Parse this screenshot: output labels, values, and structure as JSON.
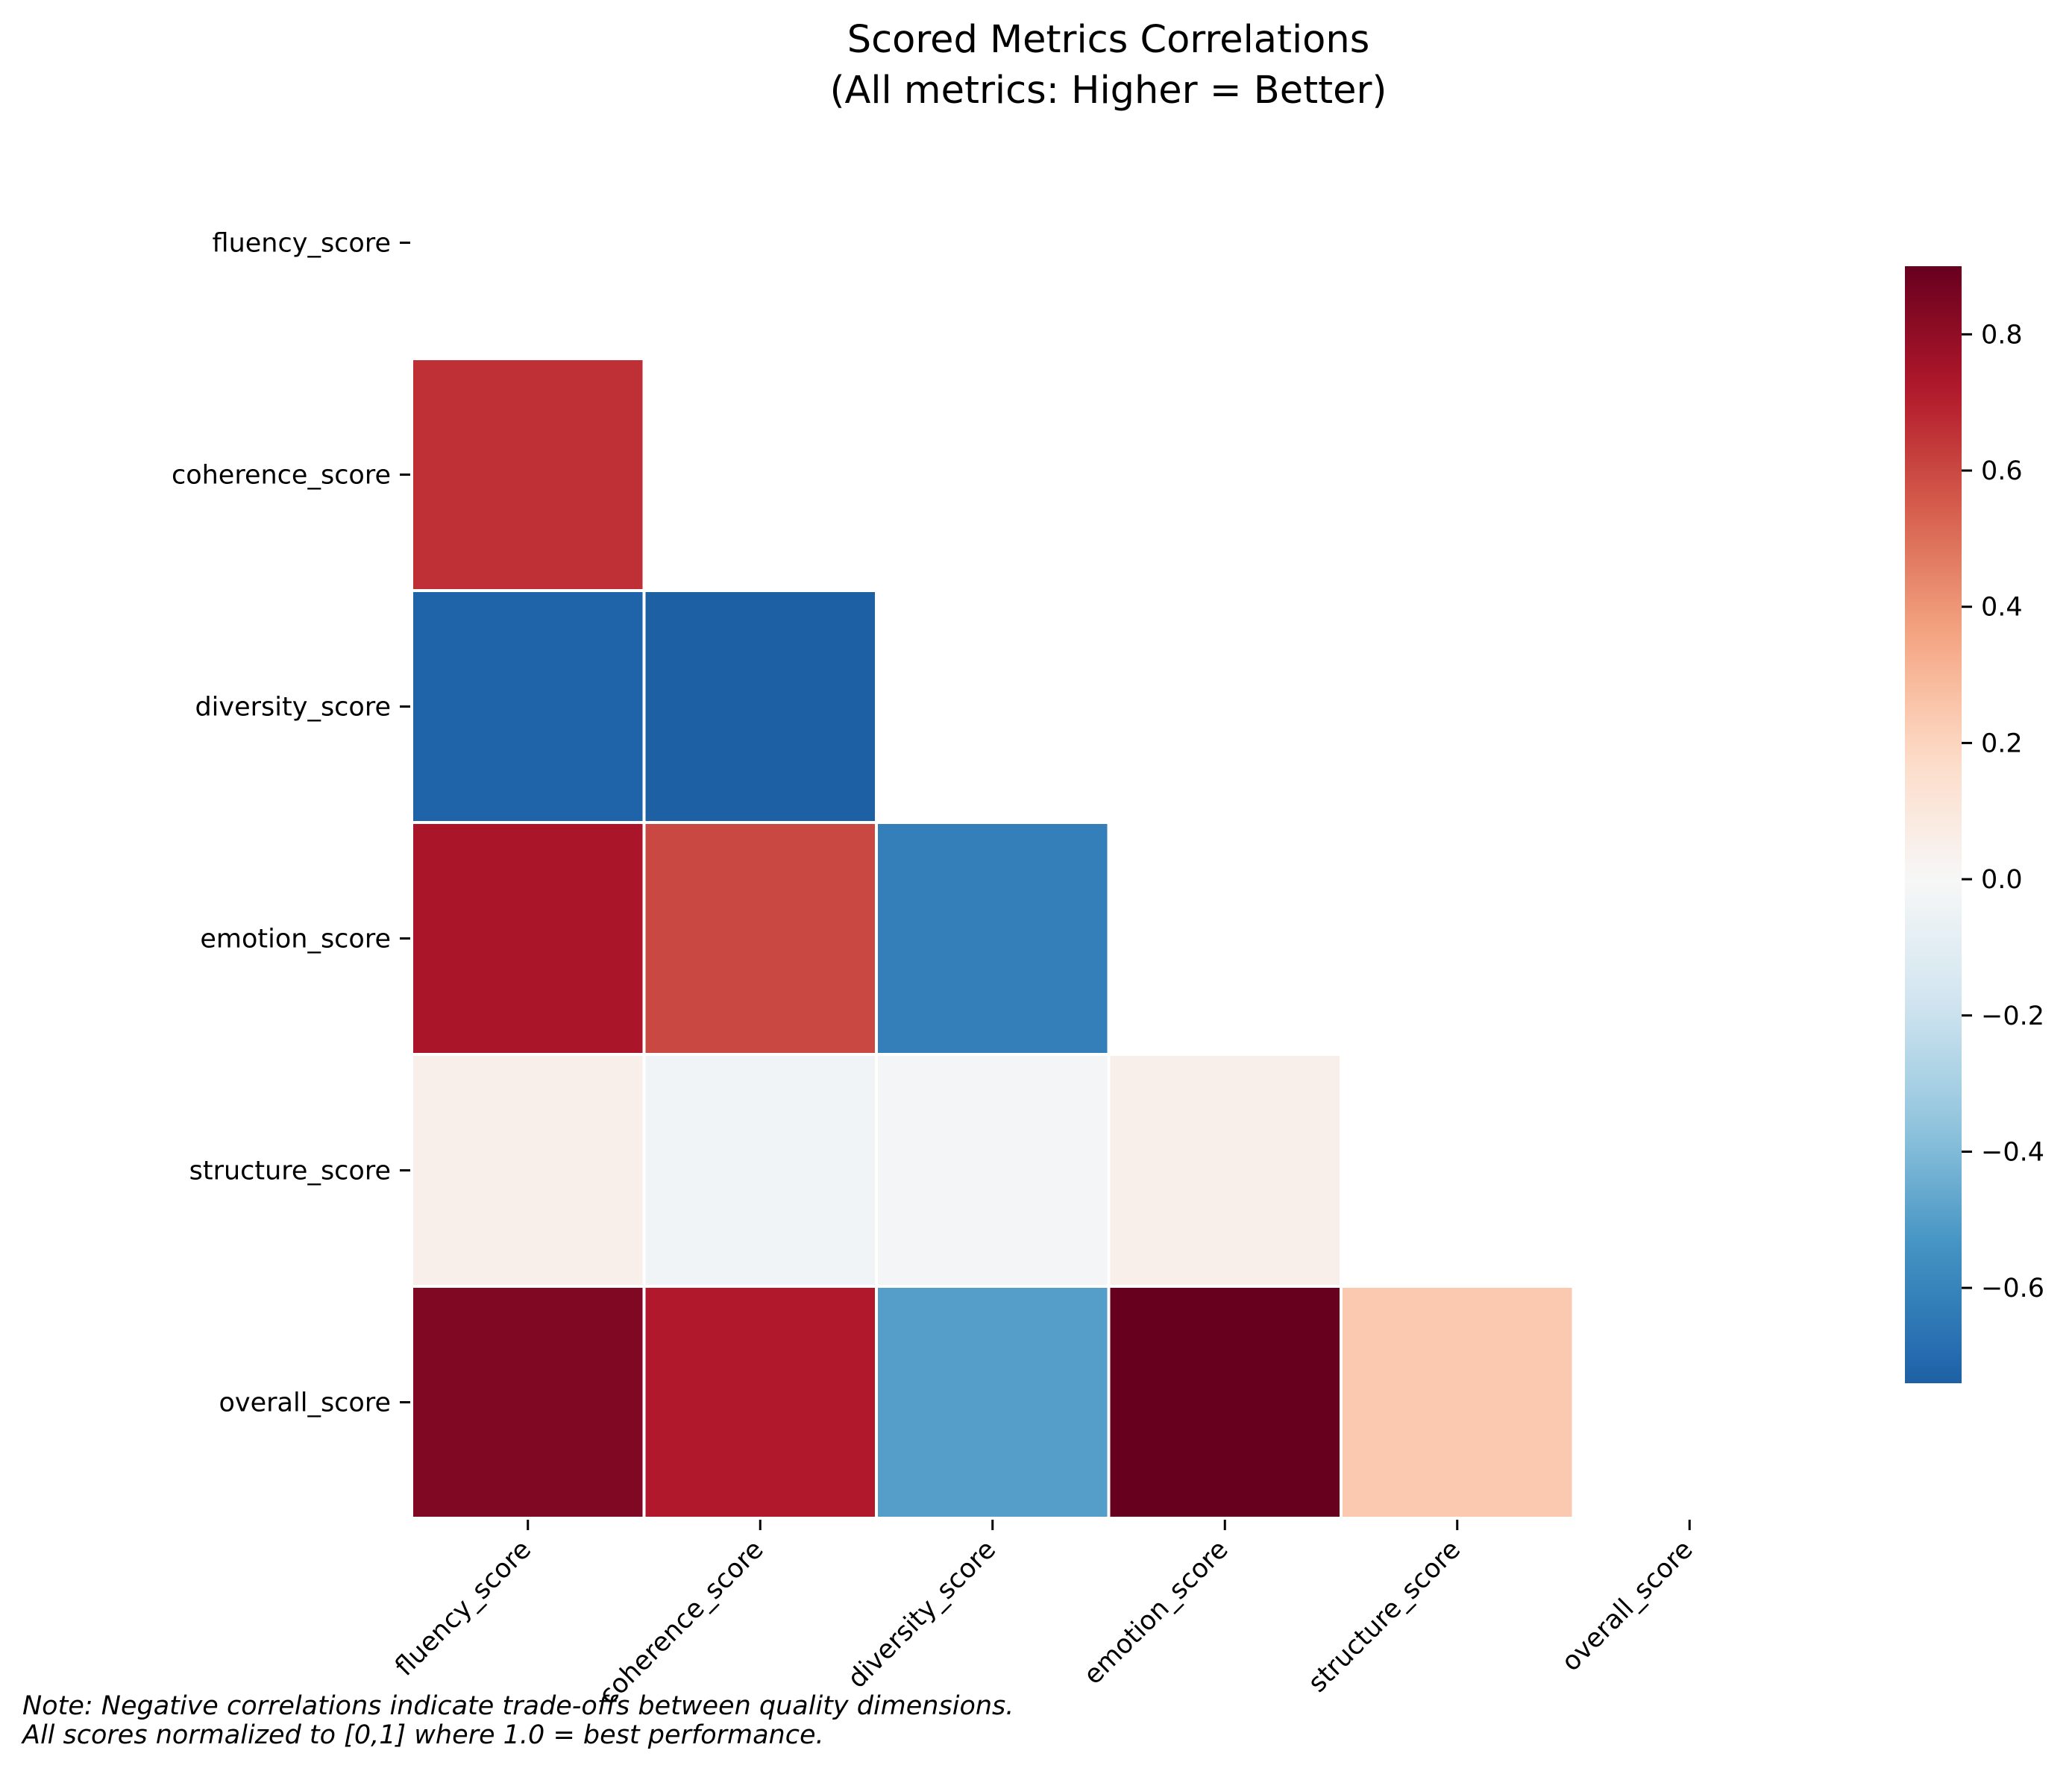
{
  "chart_data": {
    "type": "heatmap",
    "title": "Scored Metrics Correlations",
    "subtitle": "(All metrics: Higher = Better)",
    "row_labels": [
      "fluency_score",
      "coherence_score",
      "diversity_score",
      "emotion_score",
      "structure_score",
      "overall_score"
    ],
    "col_labels": [
      "fluency_score",
      "coherence_score",
      "diversity_score",
      "emotion_score",
      "structure_score",
      "overall_score"
    ],
    "mask": "upper triangle including diagonal",
    "values": [
      [
        null,
        null,
        null,
        null,
        null,
        null
      ],
      [
        0.66,
        null,
        null,
        null,
        null,
        null
      ],
      [
        -0.73,
        -0.74,
        null,
        null,
        null,
        null
      ],
      [
        0.74,
        0.6,
        -0.62,
        null,
        null,
        null
      ],
      [
        0.05,
        -0.03,
        -0.02,
        0.05,
        null,
        null
      ],
      [
        0.84,
        0.72,
        -0.5,
        0.9,
        0.24,
        null
      ]
    ],
    "colormap": "RdBu_r",
    "colorbar": {
      "vmin": -0.74,
      "vmax": 0.9,
      "ticks": [
        0.8,
        0.6,
        0.4,
        0.2,
        0.0,
        -0.2,
        -0.4,
        -0.6
      ],
      "tick_labels": [
        "0.8",
        "0.6",
        "0.4",
        "0.2",
        "0.0",
        "−0.2",
        "−0.4",
        "−0.6"
      ]
    },
    "xlabel": "",
    "ylabel": "",
    "grid": false
  },
  "note": {
    "line1": "Note: Negative correlations indicate trade-offs between quality dimensions.",
    "line2": "All scores normalized to [0,1] where 1.0 = best performance."
  }
}
